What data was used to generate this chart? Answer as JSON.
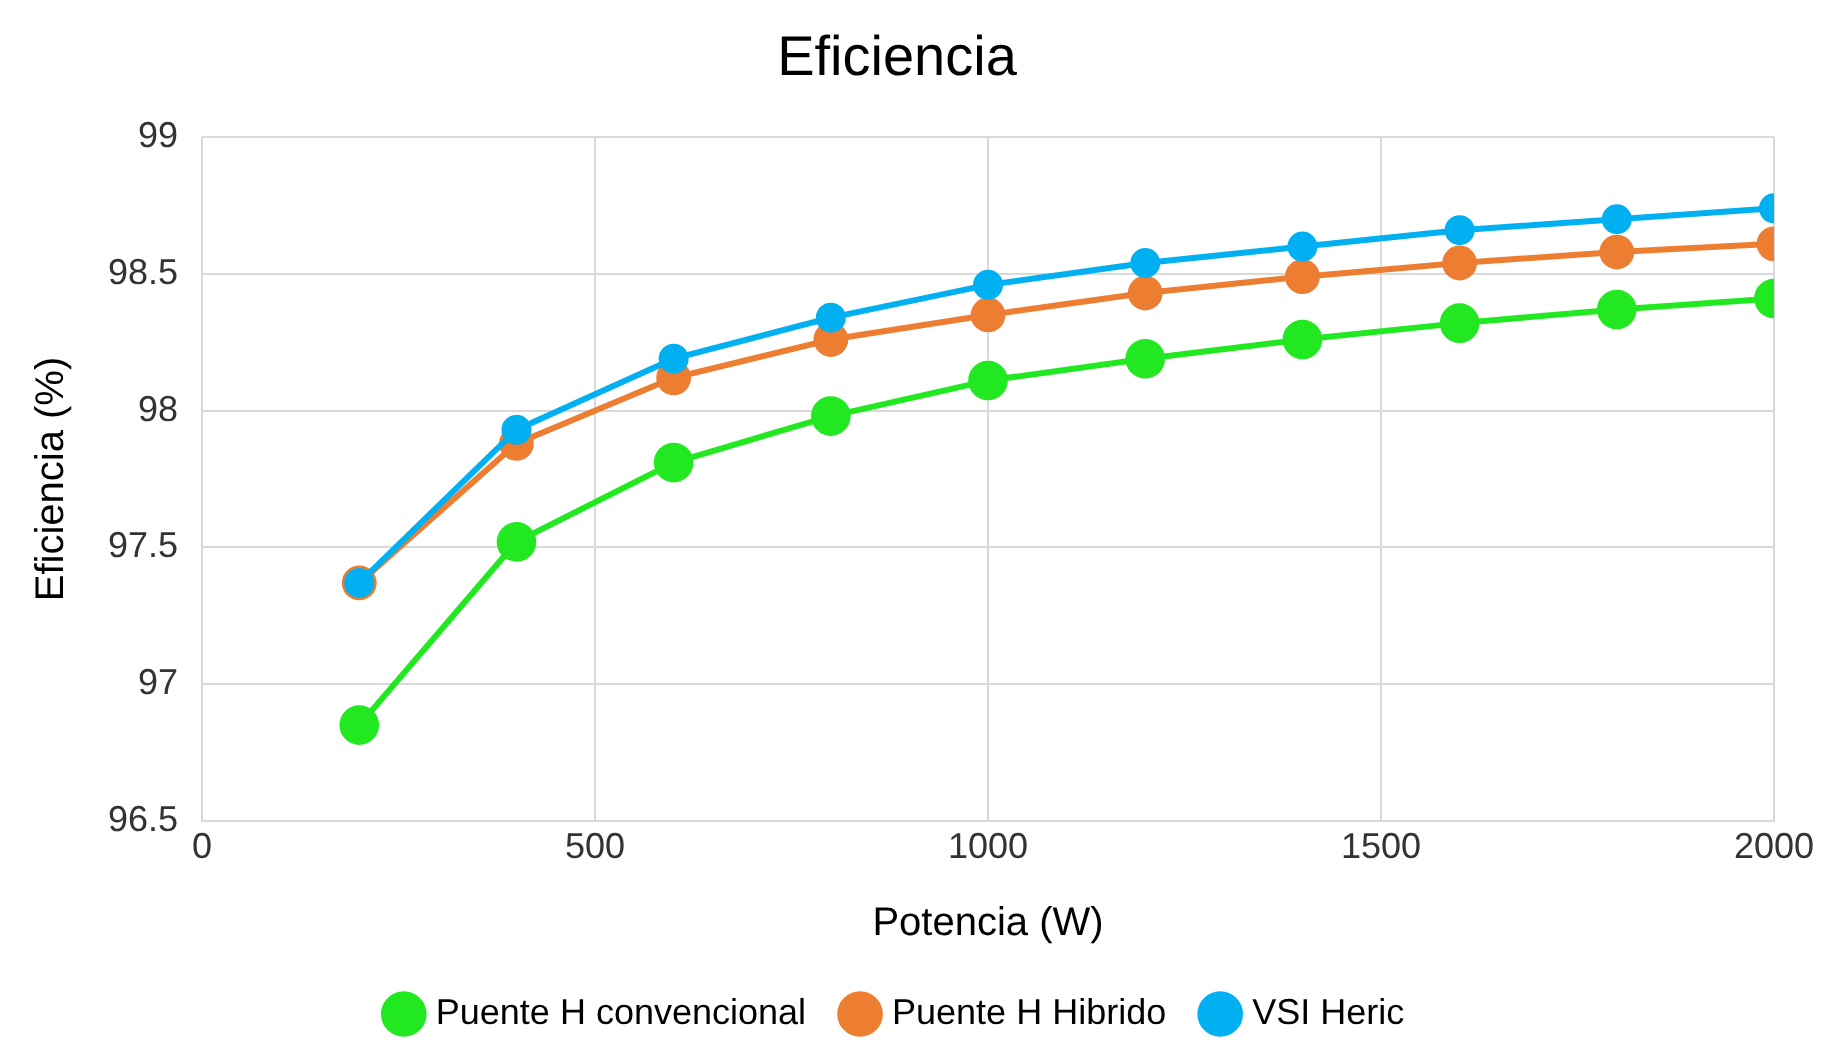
{
  "chart_data": {
    "type": "line",
    "title": "Eficiencia",
    "xlabel": "Potencia (W)",
    "ylabel": "Eficiencia (%)",
    "x": [
      200,
      400,
      600,
      800,
      1000,
      1200,
      1400,
      1600,
      1800,
      2000
    ],
    "series": [
      {
        "name": "Puente H convencional",
        "color": "#22e822",
        "values": [
          96.85,
          97.52,
          97.81,
          97.98,
          98.11,
          98.19,
          98.26,
          98.32,
          98.37,
          98.41
        ]
      },
      {
        "name": "Puente H Hibrido",
        "color": "#ed7d31",
        "values": [
          97.37,
          97.88,
          98.12,
          98.26,
          98.35,
          98.43,
          98.49,
          98.54,
          98.58,
          98.61
        ]
      },
      {
        "name": "VSI Heric",
        "color": "#00b0f0",
        "values": [
          97.37,
          97.93,
          98.19,
          98.34,
          98.46,
          98.54,
          98.6,
          98.66,
          98.7,
          98.74
        ]
      }
    ],
    "xlim": [
      0,
      2000
    ],
    "xticks": [
      0,
      500,
      1000,
      1500,
      2000
    ],
    "ylim": [
      96.5,
      99
    ],
    "yticks": [
      96.5,
      97,
      97.5,
      98,
      98.5,
      99
    ],
    "grid": true,
    "legend": "bottom",
    "marker": "circle",
    "line_style": "solid"
  }
}
